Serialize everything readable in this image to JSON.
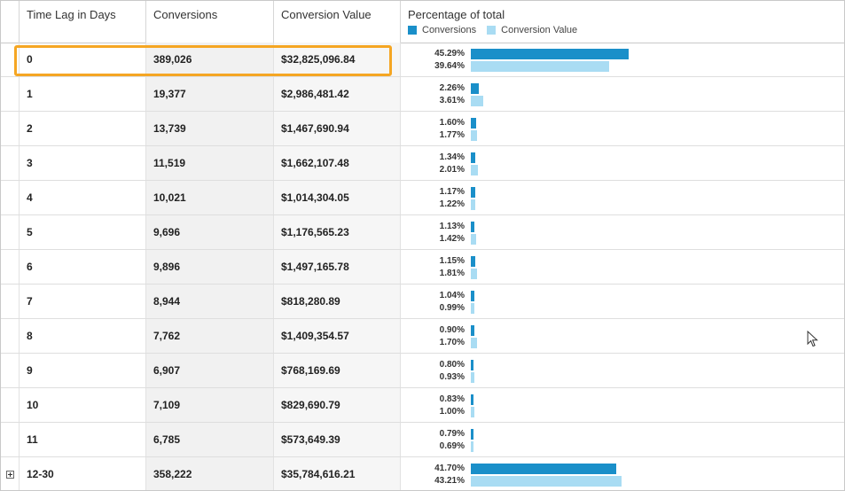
{
  "header": {
    "col_time_lag": "Time Lag in Days",
    "col_conversions": "Conversions",
    "col_value": "Conversion Value",
    "col_pct": "Percentage of total",
    "legend_conversions": "Conversions",
    "legend_value": "Conversion Value"
  },
  "colors": {
    "conversions": "#1a8fc9",
    "value": "#a9dcf3",
    "highlight": "#f5a623"
  },
  "rows": [
    {
      "lag": "0",
      "conversions": "389,026",
      "value": "$32,825,096.84",
      "pct_conv": "45.29%",
      "pct_val": "39.64%",
      "conv": 45.29,
      "val": 39.64,
      "expand": false
    },
    {
      "lag": "1",
      "conversions": "19,377",
      "value": "$2,986,481.42",
      "pct_conv": "2.26%",
      "pct_val": "3.61%",
      "conv": 2.26,
      "val": 3.61,
      "expand": false
    },
    {
      "lag": "2",
      "conversions": "13,739",
      "value": "$1,467,690.94",
      "pct_conv": "1.60%",
      "pct_val": "1.77%",
      "conv": 1.6,
      "val": 1.77,
      "expand": false
    },
    {
      "lag": "3",
      "conversions": "11,519",
      "value": "$1,662,107.48",
      "pct_conv": "1.34%",
      "pct_val": "2.01%",
      "conv": 1.34,
      "val": 2.01,
      "expand": false
    },
    {
      "lag": "4",
      "conversions": "10,021",
      "value": "$1,014,304.05",
      "pct_conv": "1.17%",
      "pct_val": "1.22%",
      "conv": 1.17,
      "val": 1.22,
      "expand": false
    },
    {
      "lag": "5",
      "conversions": "9,696",
      "value": "$1,176,565.23",
      "pct_conv": "1.13%",
      "pct_val": "1.42%",
      "conv": 1.13,
      "val": 1.42,
      "expand": false
    },
    {
      "lag": "6",
      "conversions": "9,896",
      "value": "$1,497,165.78",
      "pct_conv": "1.15%",
      "pct_val": "1.81%",
      "conv": 1.15,
      "val": 1.81,
      "expand": false
    },
    {
      "lag": "7",
      "conversions": "8,944",
      "value": "$818,280.89",
      "pct_conv": "1.04%",
      "pct_val": "0.99%",
      "conv": 1.04,
      "val": 0.99,
      "expand": false
    },
    {
      "lag": "8",
      "conversions": "7,762",
      "value": "$1,409,354.57",
      "pct_conv": "0.90%",
      "pct_val": "1.70%",
      "conv": 0.9,
      "val": 1.7,
      "expand": false
    },
    {
      "lag": "9",
      "conversions": "6,907",
      "value": "$768,169.69",
      "pct_conv": "0.80%",
      "pct_val": "0.93%",
      "conv": 0.8,
      "val": 0.93,
      "expand": false
    },
    {
      "lag": "10",
      "conversions": "7,109",
      "value": "$829,690.79",
      "pct_conv": "0.83%",
      "pct_val": "1.00%",
      "conv": 0.83,
      "val": 1.0,
      "expand": false
    },
    {
      "lag": "11",
      "conversions": "6,785",
      "value": "$573,649.39",
      "pct_conv": "0.79%",
      "pct_val": "0.69%",
      "conv": 0.79,
      "val": 0.69,
      "expand": false
    },
    {
      "lag": "12-30",
      "conversions": "358,222",
      "value": "$35,784,616.21",
      "pct_conv": "41.70%",
      "pct_val": "43.21%",
      "conv": 41.7,
      "val": 43.21,
      "expand": true
    }
  ]
}
